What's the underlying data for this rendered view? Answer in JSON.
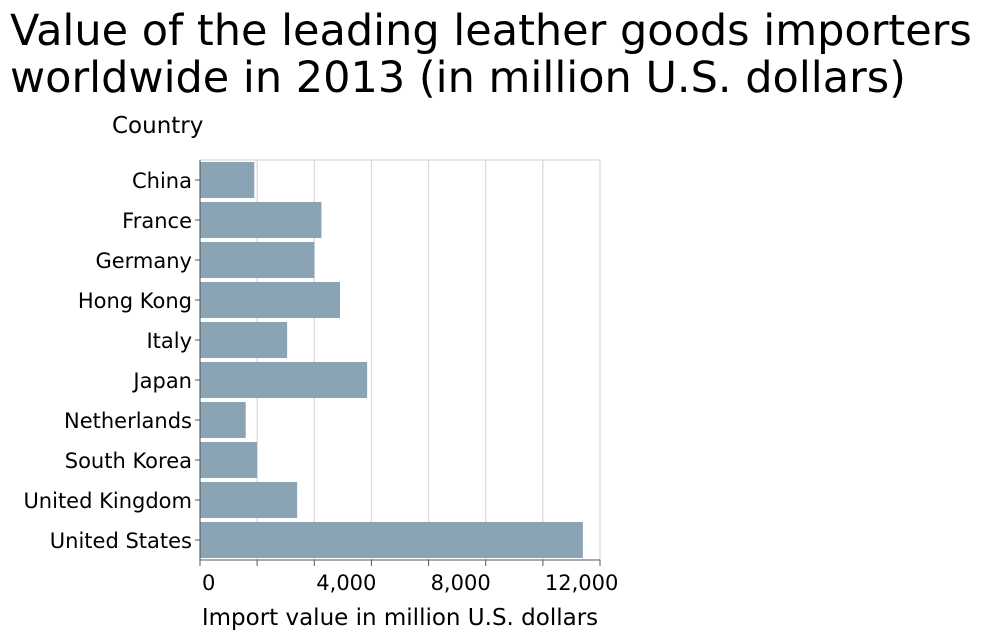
{
  "chart_data": {
    "type": "bar",
    "orientation": "horizontal",
    "title": "Value of the leading leather goods importers worldwide in 2013 (in million U.S. dollars)",
    "xlabel": "Import value in million U.S. dollars",
    "ylabel": "Country",
    "categories": [
      "China",
      "France",
      "Germany",
      "Hong Kong",
      "Italy",
      "Japan",
      "Netherlands",
      "South Korea",
      "United Kingdom",
      "United States"
    ],
    "values": [
      1900,
      4250,
      4000,
      4900,
      3050,
      5850,
      1600,
      2000,
      3400,
      13400
    ],
    "xlim": [
      0,
      14000
    ],
    "xticks": [
      0,
      4000,
      8000,
      12000
    ],
    "xtick_labels": [
      "0",
      "4,000",
      "8,000",
      "12,000"
    ],
    "grid": true,
    "bar_color": "#8aa3b5",
    "grid_color": "#d9d9d9",
    "axis_color": "#555555"
  }
}
